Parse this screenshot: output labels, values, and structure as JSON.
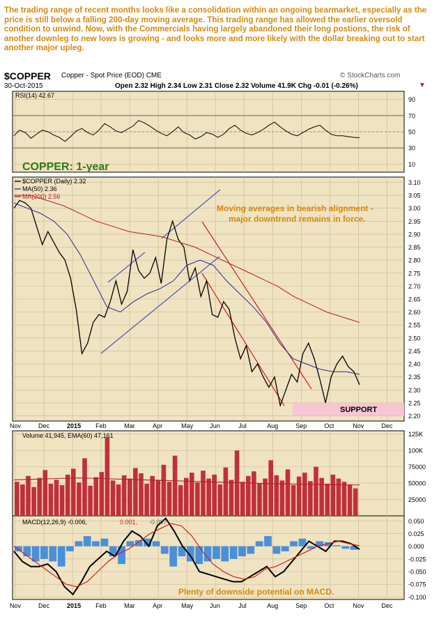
{
  "commentary": "The trading range of recent months looks like a consolidation within an ongoing bearmarket, especially as the price is still below a falling 200-day moving average. This trading range has allowed the earlier oversold condition to unwind. Now, with the Commercials having largely abandoned their long postions, the risk of another downleg to new lows is growing - and looks more and more likely with the dollar breaking out to start another major upleg.",
  "header": {
    "symbol": "$COPPER",
    "name": "Copper - Spot Price (EOD)  CME",
    "date": "30-Oct-2015",
    "quote": "Open 2.32  High 2.34  Low 2.31  Close 2.32  Volume 41.9K  Chg -0.01 (-0.26%)",
    "quote_arrow": "▼",
    "attribution": "© StockCharts.com"
  },
  "colors": {
    "panel_bg": "#f0e3c2",
    "grid": "#c8b88f",
    "price": "#000000",
    "ma50": "#1f2d8c",
    "ma200": "#b02020",
    "rsi": "#000000",
    "volume_bar": "#c0303a",
    "volume_ema": "#b02020",
    "macd": "#000000",
    "signal": "#cc2020",
    "histogram": "#4a90d9",
    "annotation": "#d4890f",
    "title_green": "#2e7a16",
    "channel_blue": "#4a5ab0",
    "channel_red": "#cc2020",
    "support": "#f7c6d2"
  },
  "chart_data": [
    {
      "type": "line",
      "panel": "rsi",
      "series": [
        {
          "name": "RSI(14) 42.67",
          "values": [
            45,
            52,
            49,
            42,
            47,
            52,
            50,
            46,
            43,
            38,
            44,
            51,
            54,
            49,
            46,
            52,
            60,
            56,
            51,
            49,
            53,
            57,
            64,
            61,
            57,
            52,
            48,
            45,
            50,
            56,
            49,
            46,
            41,
            44,
            49,
            47,
            43,
            47,
            54,
            58,
            52,
            48,
            46,
            49,
            53,
            58,
            62,
            56,
            51,
            47,
            45,
            49,
            53,
            56,
            58,
            52,
            47,
            45,
            45,
            44,
            43,
            42.67
          ]
        }
      ],
      "ylim": [
        0,
        100
      ],
      "yticks": [
        10,
        30,
        50,
        70,
        90
      ],
      "reference_lines": [
        30,
        70
      ]
    },
    {
      "type": "line",
      "panel": "price",
      "title": "COPPER: 1-year",
      "series": [
        {
          "name": "$COPPER (Daily) 2.32",
          "values": [
            3.0,
            3.03,
            3.02,
            3.0,
            2.93,
            2.86,
            2.91,
            2.87,
            2.83,
            2.8,
            2.73,
            2.61,
            2.44,
            2.48,
            2.56,
            2.59,
            2.58,
            2.64,
            2.72,
            2.63,
            2.68,
            2.84,
            2.76,
            2.73,
            2.75,
            2.81,
            2.71,
            2.88,
            2.95,
            2.88,
            2.85,
            2.72,
            2.77,
            2.66,
            2.72,
            2.59,
            2.58,
            2.64,
            2.61,
            2.5,
            2.42,
            2.47,
            2.37,
            2.4,
            2.35,
            2.31,
            2.35,
            2.24,
            2.3,
            2.36,
            2.33,
            2.44,
            2.48,
            2.42,
            2.34,
            2.25,
            2.35,
            2.4,
            2.43,
            2.39,
            2.37,
            2.32
          ]
        },
        {
          "name": "MA(50) 2.36",
          "values": [
            3.02,
            3.0,
            2.98,
            2.95,
            2.9,
            2.82,
            2.72,
            2.62,
            2.6,
            2.64,
            2.67,
            2.69,
            2.72,
            2.78,
            2.8,
            2.78,
            2.72,
            2.67,
            2.62,
            2.56,
            2.48,
            2.42,
            2.4,
            2.38,
            2.37,
            2.37,
            2.36
          ]
        },
        {
          "name": "MA(200) 2.56",
          "values": [
            3.05,
            3.05,
            3.03,
            3.01,
            2.98,
            2.95,
            2.93,
            2.91,
            2.9,
            2.89,
            2.87,
            2.85,
            2.82,
            2.79,
            2.76,
            2.73,
            2.7,
            2.66,
            2.63,
            2.6,
            2.58,
            2.56
          ]
        }
      ],
      "ylim": [
        2.18,
        3.12
      ],
      "yticks": [
        2.2,
        2.25,
        2.3,
        2.35,
        2.4,
        2.45,
        2.5,
        2.55,
        2.6,
        2.65,
        2.7,
        2.75,
        2.8,
        2.85,
        2.9,
        2.95,
        3.0,
        3.05,
        3.1
      ],
      "annotation": "Moving averages in bearish alignment - major downtrend remains in force.",
      "support_label": "SUPPORT",
      "support_range": [
        2.2,
        2.25
      ]
    },
    {
      "type": "bar",
      "panel": "volume",
      "series": [
        {
          "name": "Volume 41,945",
          "values": [
            52000,
            48000,
            61000,
            44000,
            58000,
            70000,
            49000,
            55000,
            47000,
            63000,
            72000,
            51000,
            88000,
            46000,
            59000,
            67000,
            120000,
            54000,
            48000,
            62000,
            57000,
            73000,
            65000,
            49000,
            61000,
            55000,
            78000,
            52000,
            92000,
            47000,
            58000,
            66000,
            51000,
            69000,
            57000,
            63000,
            48000,
            74000,
            55000,
            100000,
            52000,
            61000,
            68000,
            49000,
            57000,
            85000,
            62000,
            54000,
            71000,
            47000,
            60000,
            66000,
            53000,
            75000,
            58000,
            49000,
            63000,
            57000,
            52000,
            48000,
            41945
          ]
        },
        {
          "name": "EMA(60) 47,161",
          "values": [
            55000,
            56000,
            57000,
            58000,
            57000,
            56000,
            55000,
            54000,
            53000,
            52000,
            51000,
            50000,
            49000,
            48500,
            48000,
            47500,
            47161
          ]
        }
      ],
      "ylim": [
        0,
        130000
      ],
      "yticks": [
        25000,
        50000,
        75000,
        100000,
        125000
      ],
      "ytick_labels": [
        "25000",
        "50000",
        "75000",
        "100K",
        "125K"
      ]
    },
    {
      "type": "line",
      "panel": "macd",
      "series": [
        {
          "name": "MACD(12,26,9) -0.006",
          "values": [
            -0.01,
            -0.03,
            -0.04,
            -0.04,
            -0.035,
            -0.05,
            -0.08,
            -0.095,
            -0.07,
            -0.04,
            -0.025,
            -0.01,
            -0.02,
            0.01,
            0.03,
            0.02,
            0.0,
            0.04,
            0.055,
            0.03,
            0.0,
            -0.02,
            -0.05,
            -0.055,
            -0.06,
            -0.065,
            -0.07,
            -0.07,
            -0.06,
            -0.05,
            -0.04,
            -0.06,
            -0.05,
            -0.03,
            -0.01,
            0.01,
            0.0,
            -0.01,
            0.01,
            0.01,
            0.005,
            -0.006
          ]
        },
        {
          "name": "0.001",
          "values": [
            0.0,
            -0.015,
            -0.03,
            -0.045,
            -0.06,
            -0.075,
            -0.08,
            -0.07,
            -0.05,
            -0.03,
            -0.015,
            -0.005,
            0.01,
            0.025,
            0.035,
            0.045,
            0.04,
            0.02,
            -0.01,
            -0.035,
            -0.05,
            -0.06,
            -0.065,
            -0.06,
            -0.045,
            -0.04,
            -0.03,
            -0.02,
            -0.01,
            0.0,
            0.005,
            0.01,
            0.005,
            0.001
          ]
        },
        {
          "name": "-0.007",
          "values": [
            -0.01,
            -0.02,
            -0.03,
            -0.025,
            -0.03,
            -0.04,
            -0.01,
            0.01,
            0.02,
            0.01,
            0.015,
            -0.02,
            -0.035,
            0.01,
            0.012,
            0.015,
            0.01,
            -0.015,
            -0.04,
            -0.02,
            -0.03,
            -0.035,
            -0.03,
            -0.025,
            -0.03,
            -0.025,
            -0.02,
            -0.015,
            0.01,
            0.02,
            -0.015,
            -0.01,
            0.01,
            0.015,
            -0.005,
            0.01,
            0.008,
            0.002,
            -0.005,
            -0.007
          ]
        }
      ],
      "ylim": [
        -0.105,
        0.06
      ],
      "yticks": [
        -0.1,
        -0.075,
        -0.05,
        -0.025,
        0.0,
        0.025,
        0.05
      ],
      "ytick_labels": [
        "-0.100",
        "-0.075",
        "-0.050",
        "-0.025",
        "0.000",
        "0.025",
        "0.050"
      ],
      "annotation": "Plenty of downside potential on MACD."
    }
  ],
  "x_axis": {
    "months": [
      "Nov",
      "Dec",
      "2015",
      "Feb",
      "Mar",
      "Apr",
      "May",
      "Jun",
      "Jul",
      "Aug",
      "Sep",
      "Oct",
      "Nov",
      "Dec"
    ]
  }
}
